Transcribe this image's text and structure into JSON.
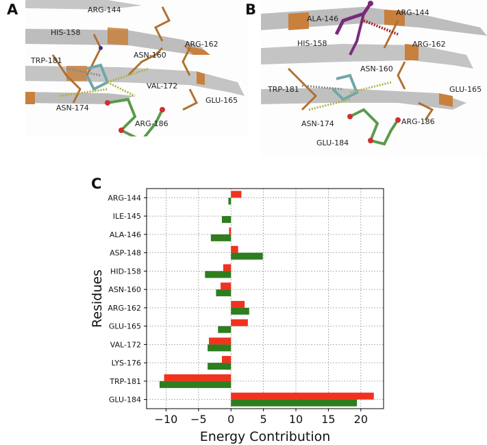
{
  "panel_a": {
    "letter": "A",
    "residues": [
      "ARG-144",
      "HIS-158",
      "ASN-160",
      "ARG-162",
      "TRP-181",
      "VAL-172",
      "ASN-174",
      "GLU-165",
      "ARG-186"
    ]
  },
  "panel_b": {
    "letter": "B",
    "residues": [
      "ALA-146",
      "ARG-144",
      "HIS-158",
      "ARG-162",
      "ASN-160",
      "TRP-181",
      "GLU-165",
      "ASN-174",
      "ARG-186",
      "GLU-184"
    ]
  },
  "panel_c": {
    "letter": "C"
  },
  "colors": {
    "red_series": "#f0321e",
    "green_series": "#2e7d1e",
    "ribbon": "#b8b8b8",
    "ribbon_highlight": "#c8803c",
    "ligand_green": "#5a9a4a",
    "ligand_purple": "#7a2a7a"
  },
  "chart_data": {
    "type": "bar",
    "orientation": "horizontal",
    "categories": [
      "ARG-144",
      "ILE-145",
      "ALA-146",
      "ASP-148",
      "HID-158",
      "ASN-160",
      "ARG-162",
      "GLU-165",
      "VAL-172",
      "LYS-176",
      "TRP-181",
      "GLU-184"
    ],
    "series": [
      {
        "color": "#f0321e",
        "values": [
          1.6,
          0.0,
          -0.3,
          1.1,
          -1.2,
          -1.6,
          2.1,
          2.6,
          -3.4,
          -1.4,
          -10.3,
          22.0
        ]
      },
      {
        "color": "#2e7d1e",
        "values": [
          -0.4,
          -1.4,
          -3.1,
          4.9,
          -4.0,
          -2.3,
          2.8,
          -2.0,
          -3.6,
          -3.6,
          -11.0,
          19.4
        ]
      }
    ],
    "xlabel": "Energy Contribution",
    "ylabel": "Residues",
    "xlim": [
      -13,
      23.5
    ],
    "xticks": [
      -10,
      -5,
      0,
      5,
      10,
      15,
      20
    ],
    "xtick_labels": [
      "−10",
      "−5",
      "0",
      "5",
      "10",
      "15",
      "20"
    ],
    "grid": true,
    "legend": false
  }
}
